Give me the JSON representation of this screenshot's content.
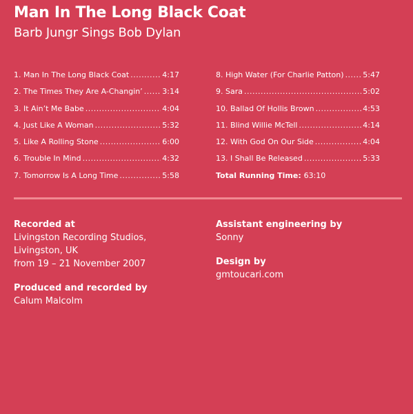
{
  "album": {
    "title": "Man In The Long Black Coat",
    "subtitle": "Barb Jungr Sings Bob Dylan"
  },
  "tracks_left": [
    {
      "label": "1. Man In The Long Black Coat",
      "time": "4:17"
    },
    {
      "label": "2. The Times They Are A-Changin’",
      "time": "3:14"
    },
    {
      "label": "3. It Ain’t Me Babe",
      "time": "4:04"
    },
    {
      "label": "4. Just Like A Woman",
      "time": "5:32"
    },
    {
      "label": "5. Like A Rolling Stone",
      "time": "6:00"
    },
    {
      "label": "6. Trouble In Mind",
      "time": "4:32"
    },
    {
      "label": "7. Tomorrow Is A Long Time",
      "time": "5:58"
    }
  ],
  "tracks_right": [
    {
      "label": "8. High Water (For Charlie Patton)",
      "time": "5:47"
    },
    {
      "label": "9. Sara",
      "time": "5:02"
    },
    {
      "label": "10. Ballad Of Hollis Brown",
      "time": "4:53"
    },
    {
      "label": "11. Blind Willie McTell",
      "time": "4:14"
    },
    {
      "label": "12. With God On Our Side",
      "time": "4:04"
    },
    {
      "label": "13. I Shall Be Released",
      "time": "5:33"
    }
  ],
  "total": {
    "label": "Total Running Time:",
    "value": "63:10"
  },
  "credits": {
    "recorded": {
      "label": "Recorded at",
      "lines": [
        "Livingston Recording Studios,",
        "Livingston, UK",
        "from 19 – 21 November 2007"
      ]
    },
    "produced": {
      "label": "Produced and recorded by",
      "lines": [
        "Calum Malcolm"
      ]
    },
    "assistant": {
      "label": "Assistant engineering by",
      "lines": [
        "Sonny"
      ]
    },
    "design": {
      "label": "Design by",
      "lines": [
        "gmtoucari.com"
      ]
    }
  },
  "colors": {
    "background": "#d43f55",
    "divider": "#f08a92",
    "text": "#ffffff"
  }
}
